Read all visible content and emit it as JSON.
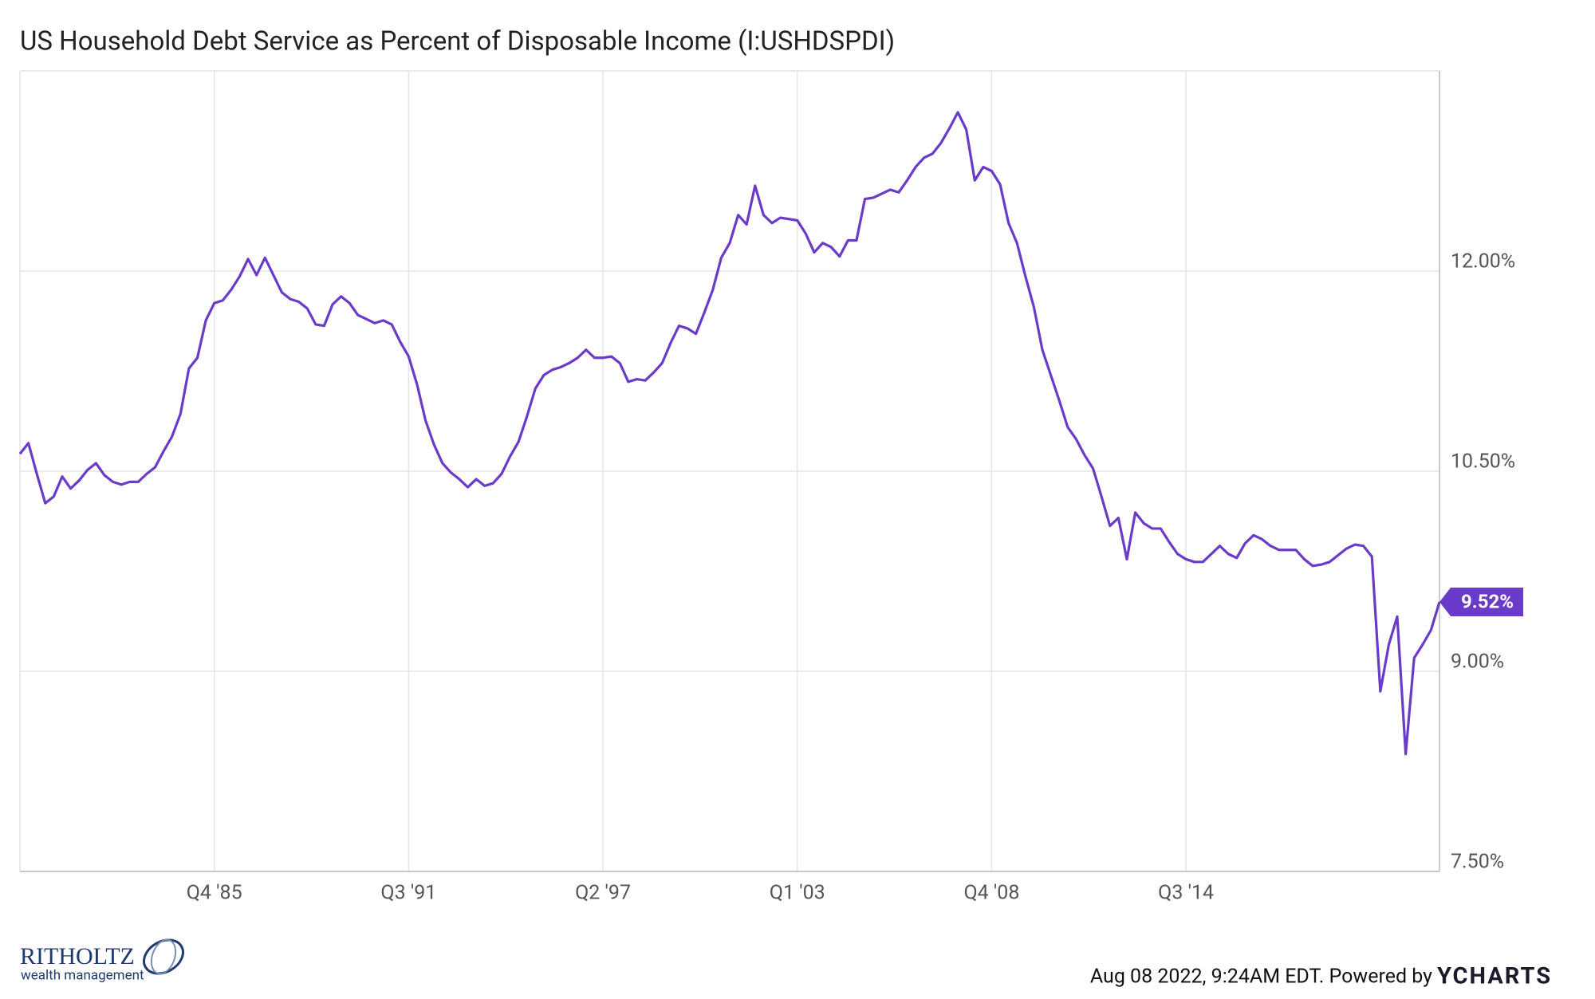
{
  "chart_data": {
    "type": "line",
    "title": "US Household Debt Service as Percent of Disposable Income (I:USHDSPDI)",
    "x": [
      1980,
      1980.25,
      1980.5,
      1980.75,
      1981,
      1981.25,
      1981.5,
      1981.75,
      1982,
      1982.25,
      1982.5,
      1982.75,
      1983,
      1983.25,
      1983.5,
      1983.75,
      1984,
      1984.25,
      1984.5,
      1984.75,
      1985,
      1985.25,
      1985.5,
      1985.75,
      1986,
      1986.25,
      1986.5,
      1986.75,
      1987,
      1987.25,
      1987.5,
      1987.75,
      1988,
      1988.25,
      1988.5,
      1988.75,
      1989,
      1989.25,
      1989.5,
      1989.75,
      1990,
      1990.25,
      1990.5,
      1990.75,
      1991,
      1991.25,
      1991.5,
      1991.75,
      1992,
      1992.25,
      1992.5,
      1992.75,
      1993,
      1993.25,
      1993.5,
      1993.75,
      1994,
      1994.25,
      1994.5,
      1994.75,
      1995,
      1995.25,
      1995.5,
      1995.75,
      1996,
      1996.25,
      1996.5,
      1996.75,
      1997,
      1997.25,
      1997.5,
      1997.75,
      1998,
      1998.25,
      1998.5,
      1998.75,
      1999,
      1999.25,
      1999.5,
      1999.75,
      2000,
      2000.25,
      2000.5,
      2000.75,
      2001,
      2001.25,
      2001.5,
      2001.75,
      2002,
      2002.25,
      2002.5,
      2002.75,
      2003,
      2003.25,
      2003.5,
      2003.75,
      2004,
      2004.25,
      2004.5,
      2004.75,
      2005,
      2005.25,
      2005.5,
      2005.75,
      2006,
      2006.25,
      2006.5,
      2006.75,
      2007,
      2007.25,
      2007.5,
      2007.75,
      2008,
      2008.25,
      2008.5,
      2008.75,
      2009,
      2009.25,
      2009.5,
      2009.75,
      2010,
      2010.25,
      2010.5,
      2010.75,
      2011,
      2011.25,
      2011.5,
      2011.75,
      2012,
      2012.25,
      2012.5,
      2012.75,
      2013,
      2013.25,
      2013.5,
      2013.75,
      2014,
      2014.25,
      2014.5,
      2014.75,
      2015,
      2015.25,
      2015.5,
      2015.75,
      2016,
      2016.25,
      2016.5,
      2016.75,
      2017,
      2017.25,
      2017.5,
      2017.75,
      2018,
      2018.25,
      2018.5,
      2018.75,
      2019,
      2019.25,
      2019.5,
      2019.75,
      2020,
      2020.25,
      2020.5,
      2020.75,
      2021,
      2021.25,
      2021.5,
      2021.75,
      2022
    ],
    "series": [
      {
        "name": "US Household Debt Service as Percent of Disposable Income",
        "color": "#6a3bc8",
        "values": [
          10.63,
          10.71,
          10.48,
          10.26,
          10.31,
          10.46,
          10.37,
          10.43,
          10.51,
          10.56,
          10.47,
          10.42,
          10.4,
          10.42,
          10.42,
          10.48,
          10.53,
          10.65,
          10.76,
          10.93,
          11.27,
          11.35,
          11.63,
          11.76,
          11.78,
          11.86,
          11.96,
          12.09,
          11.97,
          12.1,
          11.97,
          11.84,
          11.79,
          11.77,
          11.72,
          11.6,
          11.59,
          11.75,
          11.81,
          11.76,
          11.67,
          11.64,
          11.61,
          11.63,
          11.6,
          11.47,
          11.36,
          11.15,
          10.88,
          10.7,
          10.56,
          10.49,
          10.44,
          10.38,
          10.44,
          10.39,
          10.41,
          10.48,
          10.61,
          10.72,
          10.91,
          11.12,
          11.22,
          11.26,
          11.28,
          11.31,
          11.35,
          11.41,
          11.35,
          11.35,
          11.36,
          11.31,
          11.17,
          11.19,
          11.18,
          11.24,
          11.31,
          11.46,
          11.59,
          11.57,
          11.53,
          11.69,
          11.86,
          12.1,
          12.21,
          12.42,
          12.35,
          12.64,
          12.42,
          12.36,
          12.4,
          12.39,
          12.38,
          12.28,
          12.14,
          12.21,
          12.18,
          12.11,
          12.23,
          12.23,
          12.54,
          12.55,
          12.58,
          12.61,
          12.59,
          12.68,
          12.78,
          12.85,
          12.88,
          12.96,
          13.07,
          13.19,
          13.06,
          12.68,
          12.78,
          12.75,
          12.65,
          12.36,
          12.21,
          11.96,
          11.73,
          11.41,
          11.22,
          11.03,
          10.83,
          10.74,
          10.62,
          10.52,
          10.31,
          10.09,
          10.15,
          9.84,
          10.19,
          10.11,
          10.07,
          10.07,
          9.97,
          9.88,
          9.84,
          9.82,
          9.82,
          9.88,
          9.94,
          9.88,
          9.85,
          9.96,
          10.02,
          9.99,
          9.94,
          9.91,
          9.91,
          9.91,
          9.84,
          9.79,
          9.8,
          9.82,
          9.87,
          9.92,
          9.95,
          9.94,
          9.86,
          8.85,
          9.2,
          9.41,
          8.38,
          9.1,
          9.2,
          9.31,
          9.52
        ]
      }
    ],
    "annotations": [
      {
        "text": "9.52%",
        "value": 9.52
      }
    ],
    "xlim": [
      1980,
      2022
    ],
    "xticks": [
      {
        "value": 1985.75,
        "label": "Q4 '85"
      },
      {
        "value": 1991.5,
        "label": "Q3 '91"
      },
      {
        "value": 1997.25,
        "label": "Q2 '97"
      },
      {
        "value": 2003,
        "label": "Q1 '03"
      },
      {
        "value": 2008.75,
        "label": "Q4 '08"
      },
      {
        "value": 2014.5,
        "label": "Q3 '14"
      }
    ],
    "ylim": [
      7.5,
      13.5
    ],
    "yticks": [
      {
        "value": 7.5,
        "label": "7.50%"
      },
      {
        "value": 9,
        "label": "9.00%"
      },
      {
        "value": 10.5,
        "label": "10.50%"
      },
      {
        "value": 12,
        "label": "12.00%"
      }
    ],
    "grid": true
  },
  "footer": {
    "timestamp": "Aug 08 2022, 9:24AM EDT. Powered by",
    "brand": "YCHARTS",
    "logo_name": "RITHOLTZ",
    "logo_sub": "wealth management"
  }
}
